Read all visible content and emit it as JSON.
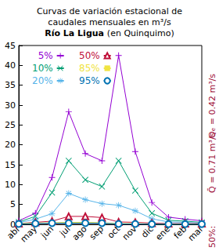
{
  "chart_data": {
    "type": "line",
    "title": "Curvas de variación estacional de\ncaudales mensuales en m³/s",
    "subtitle": "Río La Ligua (en Quinquimo)",
    "categories": [
      "abr",
      "may",
      "jun",
      "jul",
      "ago",
      "sep",
      "oct",
      "nov",
      "dic",
      "ene",
      "feb",
      "mar"
    ],
    "series": [
      {
        "name": "5%",
        "color": "#9400d3",
        "marker": "plus",
        "values": [
          0.9,
          2.8,
          11.8,
          28.3,
          17.8,
          16.0,
          42.5,
          18.3,
          5.5,
          1.8,
          1.3,
          0.9
        ]
      },
      {
        "name": "10%",
        "color": "#009e73",
        "marker": "cross",
        "values": [
          0.6,
          2.0,
          8.0,
          16.0,
          11.2,
          9.5,
          16.0,
          8.5,
          2.8,
          1.0,
          0.8,
          0.5
        ]
      },
      {
        "name": "20%",
        "color": "#56b4e9",
        "marker": "star",
        "values": [
          0.4,
          1.3,
          2.7,
          7.8,
          6.2,
          5.2,
          4.8,
          3.4,
          1.4,
          0.6,
          0.5,
          0.3
        ]
      },
      {
        "name": "50%",
        "color": "#c0103a",
        "marker": "triangle",
        "values": [
          0.2,
          0.5,
          0.8,
          2.0,
          2.0,
          1.7,
          0.6,
          0.5,
          0.3,
          0.2,
          0.2,
          0.2
        ]
      },
      {
        "name": "85%",
        "color": "#f0e442",
        "marker": "square",
        "values": [
          0.2,
          0.3,
          0.4,
          0.5,
          0.5,
          0.4,
          0.2,
          0.2,
          0.1,
          0.1,
          0.1,
          0.1
        ]
      },
      {
        "name": "95%",
        "color": "#0072b2",
        "marker": "circle",
        "values": [
          0.1,
          0.2,
          0.3,
          0.3,
          0.3,
          0.3,
          0.1,
          0.1,
          0.05,
          0.05,
          0.05,
          0.05
        ]
      }
    ],
    "annotations": [
      "50%:",
      "Q̄ = 0.71 m³/s",
      "Qₑ = 0.42 m³/s"
    ],
    "ylim": [
      0,
      45
    ],
    "yticks": [
      0,
      5,
      10,
      15,
      20,
      25,
      30,
      35,
      40,
      45
    ],
    "grid": false,
    "legend": "top-left"
  }
}
